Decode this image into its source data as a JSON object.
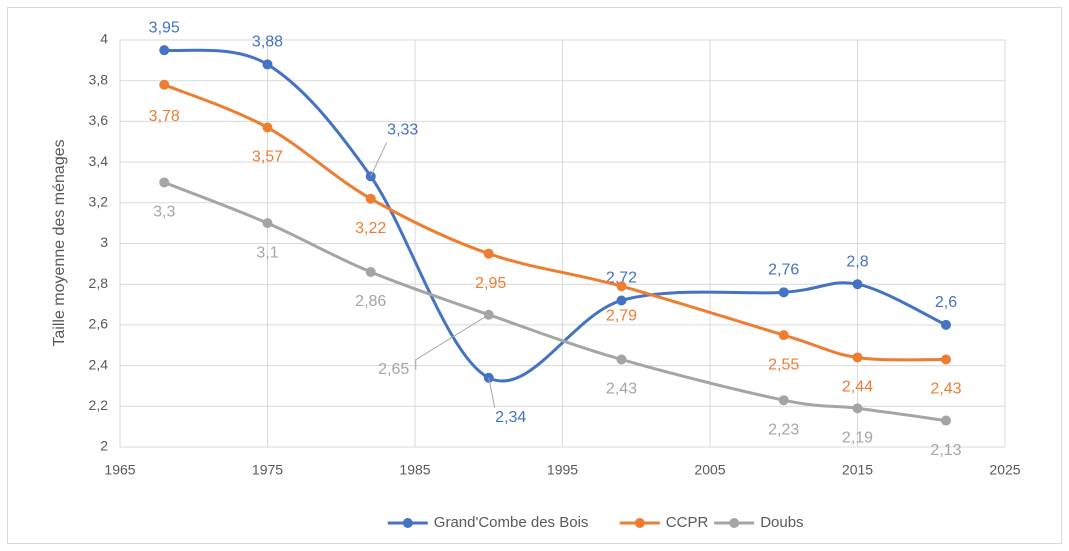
{
  "chart_data": {
    "type": "line",
    "y_label": "Taille moyenne des ménages",
    "x": [
      1968,
      1975,
      1982,
      1990,
      1999,
      2010,
      2015,
      2021
    ],
    "series": [
      {
        "name": "Grand'Combe des Bois",
        "color": "#4472c4",
        "values": [
          3.95,
          3.88,
          3.33,
          2.34,
          2.72,
          2.76,
          2.8,
          2.6
        ],
        "value_labels": [
          "3,95",
          "3,88",
          "3,33",
          "2,34",
          "2,72",
          "2,76",
          "2,8",
          "2,6"
        ]
      },
      {
        "name": "CCPR",
        "color": "#ed7d31",
        "values": [
          3.78,
          3.57,
          3.22,
          2.95,
          2.79,
          2.55,
          2.44,
          2.43
        ],
        "value_labels": [
          "3,78",
          "3,57",
          "3,22",
          "2,95",
          "2,79",
          "2,55",
          "2,44",
          "2,43"
        ]
      },
      {
        "name": "Doubs",
        "color": "#a5a5a5",
        "values": [
          3.3,
          3.1,
          2.86,
          2.65,
          2.43,
          2.23,
          2.19,
          2.13
        ],
        "value_labels": [
          "3,3",
          "3,1",
          "2,86",
          "2,65",
          "2,43",
          "2,23",
          "2,19",
          "2,13"
        ]
      }
    ],
    "xlim": [
      1965,
      2025
    ],
    "xticks": [
      1965,
      1975,
      1985,
      1995,
      2005,
      2015,
      2025
    ],
    "ylim": [
      2,
      4
    ],
    "yticks": [
      2,
      {
        "value": 2.2,
        "label": "2,2"
      },
      {
        "value": 2.4,
        "label": "2,4"
      },
      {
        "value": 2.6,
        "label": "2,6"
      },
      {
        "value": 2.8,
        "label": "2,8"
      },
      3,
      {
        "value": 3.2,
        "label": "3,2"
      },
      {
        "value": 3.4,
        "label": "3,4"
      },
      {
        "value": 3.6,
        "label": "3,6"
      },
      {
        "value": 3.8,
        "label": "3,8"
      },
      4
    ],
    "grid": true,
    "legend": "bottom"
  }
}
